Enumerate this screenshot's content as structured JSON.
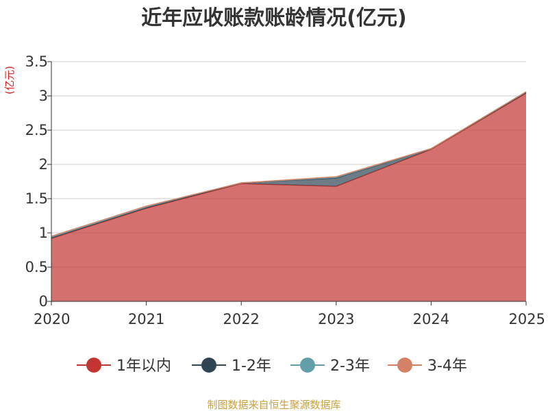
{
  "chart_data": {
    "type": "area",
    "stacked": true,
    "title": "近年应收账款账龄情况(亿元)",
    "ylabel": "(亿元)",
    "xlabel": "",
    "x": [
      "2020",
      "2021",
      "2022",
      "2023",
      "2024",
      "2025"
    ],
    "ylim": [
      0,
      3.5
    ],
    "yticks": [
      "0",
      "0.5",
      "1",
      "1.5",
      "2",
      "2.5",
      "3",
      "3.5"
    ],
    "grid": true,
    "legend_position": "bottom",
    "series": [
      {
        "name": "1年以内",
        "color": "#c23531",
        "values": [
          0.92,
          1.36,
          1.72,
          1.68,
          2.22,
          3.04
        ]
      },
      {
        "name": "1-2年",
        "color": "#2f4554",
        "values": [
          0.01,
          0.01,
          0.01,
          0.12,
          0.01,
          0.01
        ]
      },
      {
        "name": "2-3年",
        "color": "#61a0a8",
        "values": [
          0.02,
          0.02,
          0.0,
          0.01,
          0.0,
          0.01
        ]
      },
      {
        "name": "3-4年",
        "color": "#d48265",
        "values": [
          0.0,
          0.0,
          0.0,
          0.01,
          0.0,
          0.0
        ]
      }
    ],
    "source": "制图数据来自恒生聚源数据库"
  }
}
